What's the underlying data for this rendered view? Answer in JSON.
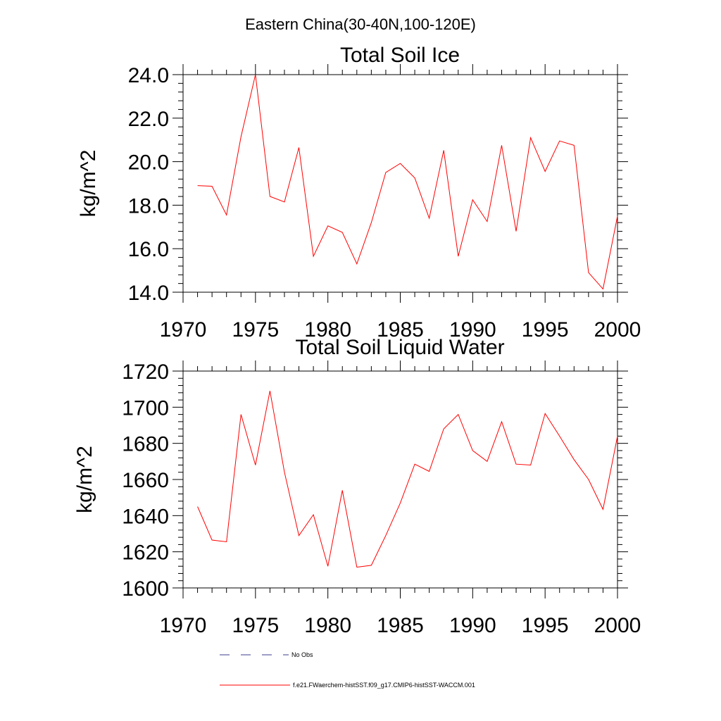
{
  "figure": {
    "title": "Eastern China(30-40N,100-120E)",
    "legend": [
      {
        "label": "No Obs",
        "color": "#3d3d8f",
        "style": "dashed"
      },
      {
        "label": "f.e21.FWaerchem-histSST.f09_g17.CMIP6-histSST-WACCM.001",
        "color": "#ff0000",
        "style": "solid"
      }
    ]
  },
  "chart_data": [
    {
      "type": "line",
      "title": "Total Soil Ice",
      "xlabel": "",
      "ylabel": "kg/m^2",
      "xlim": [
        1970,
        2000
      ],
      "ylim": [
        14,
        24
      ],
      "xticks": [
        "1970",
        "1975",
        "1980",
        "1985",
        "1990",
        "1995",
        "2000"
      ],
      "yticks": [
        "14.0",
        "16.0",
        "18.0",
        "20.0",
        "22.0",
        "24.0"
      ],
      "grid": false,
      "series": [
        {
          "name": "f.e21.FWaerchem-histSST.f09_g17.CMIP6-histSST-WACCM.001",
          "color": "#ff0000",
          "x": [
            1971,
            1972,
            1973,
            1974,
            1975,
            1976,
            1977,
            1978,
            1979,
            1980,
            1981,
            1982,
            1983,
            1984,
            1985,
            1986,
            1987,
            1988,
            1989,
            1990,
            1991,
            1992,
            1993,
            1994,
            1995,
            1996,
            1997,
            1998,
            1999,
            2000
          ],
          "values": [
            18.9,
            18.87,
            17.55,
            21.15,
            24.0,
            18.4,
            18.15,
            20.65,
            15.65,
            17.05,
            16.75,
            15.3,
            17.2,
            19.5,
            19.92,
            19.25,
            17.4,
            20.52,
            15.65,
            18.25,
            17.25,
            20.75,
            16.8,
            21.1,
            19.55,
            20.95,
            20.75,
            14.9,
            14.15,
            17.5
          ]
        }
      ]
    },
    {
      "type": "line",
      "title": "Total Soil Liquid Water",
      "xlabel": "",
      "ylabel": "kg/m^2",
      "xlim": [
        1970,
        2000
      ],
      "ylim": [
        1600,
        1720
      ],
      "xticks": [
        "1970",
        "1975",
        "1980",
        "1985",
        "1990",
        "1995",
        "2000"
      ],
      "yticks": [
        "1600",
        "1620",
        "1640",
        "1660",
        "1680",
        "1700",
        "1720"
      ],
      "grid": false,
      "series": [
        {
          "name": "f.e21.FWaerchem-histSST.f09_g17.CMIP6-histSST-WACCM.001",
          "color": "#ff0000",
          "x": [
            1971,
            1972,
            1973,
            1974,
            1975,
            1976,
            1977,
            1978,
            1979,
            1980,
            1981,
            1982,
            1983,
            1984,
            1985,
            1986,
            1987,
            1988,
            1989,
            1990,
            1991,
            1992,
            1993,
            1994,
            1995,
            1996,
            1997,
            1998,
            1999,
            2000
          ],
          "values": [
            1645,
            1626.5,
            1625.5,
            1696,
            1668,
            1709,
            1664,
            1629,
            1640.5,
            1612,
            1654,
            1611.5,
            1612.5,
            1629,
            1647,
            1668.5,
            1664.5,
            1688,
            1696,
            1676,
            1670,
            1692,
            1668.5,
            1668,
            1696.5,
            1684,
            1671,
            1660,
            1643.5,
            1684
          ]
        }
      ]
    }
  ]
}
